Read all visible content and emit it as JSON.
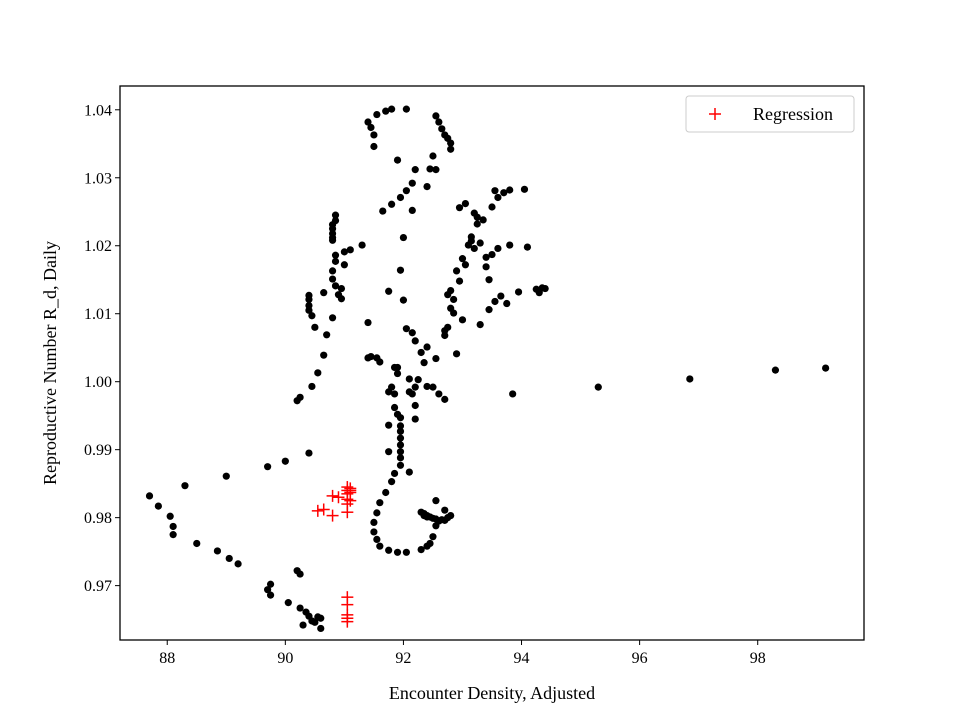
{
  "chart_data": {
    "type": "scatter",
    "title": "",
    "xlabel": "Encounter Density, Adjusted",
    "ylabel": "Reproductive Number R_d, Daily",
    "xlim": [
      87.2,
      99.8
    ],
    "ylim": [
      0.962,
      1.0435
    ],
    "xticks": [
      88,
      90,
      92,
      94,
      96,
      98
    ],
    "yticks": [
      0.97,
      0.98,
      0.99,
      1.0,
      1.01,
      1.02,
      1.03,
      1.04
    ],
    "xtick_labels": [
      "88",
      "90",
      "92",
      "94",
      "96",
      "98"
    ],
    "ytick_labels": [
      "0.97",
      "0.98",
      "0.99",
      "1.00",
      "1.01",
      "1.02",
      "1.03",
      "1.04"
    ],
    "grid": false,
    "legend_position": "top-right",
    "legend_items": [
      {
        "label": "Regression",
        "marker": "+",
        "color": "#ff0000"
      }
    ],
    "colors": {
      "data": "#000000",
      "regression": "#ff0000"
    },
    "series": [
      {
        "marker": "circle",
        "color": "#000000",
        "points": [
          [
            87.7,
            0.9832
          ],
          [
            87.85,
            0.9817
          ],
          [
            88.05,
            0.9802
          ],
          [
            88.1,
            0.9787
          ],
          [
            88.1,
            0.9775
          ],
          [
            88.3,
            0.9847
          ],
          [
            88.5,
            0.9762
          ],
          [
            88.85,
            0.9751
          ],
          [
            89.0,
            0.9861
          ],
          [
            89.05,
            0.974
          ],
          [
            89.2,
            0.9732
          ],
          [
            89.7,
            0.9875
          ],
          [
            89.7,
            0.9694
          ],
          [
            89.75,
            0.9702
          ],
          [
            89.75,
            0.9686
          ],
          [
            90.0,
            0.9883
          ],
          [
            90.05,
            0.9675
          ],
          [
            90.2,
            0.9722
          ],
          [
            90.2,
            0.9972
          ],
          [
            90.25,
            0.9977
          ],
          [
            90.25,
            0.9717
          ],
          [
            90.25,
            0.9667
          ],
          [
            90.3,
            0.9642
          ],
          [
            90.35,
            0.9661
          ],
          [
            90.4,
            0.9895
          ],
          [
            90.4,
            0.9655
          ],
          [
            90.45,
            0.9648
          ],
          [
            90.45,
            0.9993
          ],
          [
            90.5,
            0.9646
          ],
          [
            90.55,
            0.9654
          ],
          [
            90.55,
            1.0013
          ],
          [
            90.6,
            0.9637
          ],
          [
            90.6,
            0.9652
          ],
          [
            90.65,
            1.0039
          ],
          [
            90.4,
            1.0127
          ],
          [
            90.4,
            1.0121
          ],
          [
            90.4,
            1.0112
          ],
          [
            90.4,
            1.0105
          ],
          [
            90.45,
            1.0097
          ],
          [
            90.5,
            1.008
          ],
          [
            90.65,
            1.0131
          ],
          [
            90.7,
            1.0069
          ],
          [
            90.8,
            1.0094
          ],
          [
            90.8,
            1.0151
          ],
          [
            90.8,
            1.0163
          ],
          [
            90.85,
            1.0141
          ],
          [
            90.8,
            1.0218
          ],
          [
            90.8,
            1.0225
          ],
          [
            90.8,
            1.0231
          ],
          [
            90.8,
            1.0212
          ],
          [
            90.8,
            1.0208
          ],
          [
            90.85,
            1.0245
          ],
          [
            90.85,
            1.0237
          ],
          [
            90.85,
            1.0186
          ],
          [
            90.85,
            1.0177
          ],
          [
            90.9,
            1.0128
          ],
          [
            90.95,
            1.0122
          ],
          [
            90.95,
            1.0137
          ],
          [
            91.0,
            1.0172
          ],
          [
            91.0,
            1.0191
          ],
          [
            91.1,
            1.0194
          ],
          [
            91.3,
            1.0201
          ],
          [
            91.4,
            1.0087
          ],
          [
            91.4,
            1.0035
          ],
          [
            91.45,
            1.0037
          ],
          [
            91.55,
            1.0035
          ],
          [
            91.6,
            1.0029
          ],
          [
            91.65,
            1.0251
          ],
          [
            91.75,
            1.0133
          ],
          [
            91.8,
            1.0261
          ],
          [
            91.8,
            0.9992
          ],
          [
            91.85,
            1.0021
          ],
          [
            91.85,
            0.9982
          ],
          [
            91.9,
            1.0021
          ],
          [
            91.9,
            1.0012
          ],
          [
            91.95,
            1.0271
          ],
          [
            91.95,
            1.0164
          ],
          [
            92.0,
            1.0212
          ],
          [
            92.0,
            1.012
          ],
          [
            92.05,
            1.0281
          ],
          [
            92.05,
            1.0078
          ],
          [
            92.1,
            1.0004
          ],
          [
            92.15,
            0.9982
          ],
          [
            92.2,
            1.006
          ],
          [
            92.15,
            1.0072
          ],
          [
            92.15,
            1.0292
          ],
          [
            92.15,
            1.0252
          ],
          [
            92.2,
            1.0312
          ],
          [
            92.25,
            1.0003
          ],
          [
            92.3,
            1.0043
          ],
          [
            92.35,
            1.0028
          ],
          [
            92.4,
            1.0051
          ],
          [
            92.4,
            0.9993
          ],
          [
            92.4,
            1.0287
          ],
          [
            92.5,
            0.9992
          ],
          [
            92.55,
            1.0034
          ],
          [
            92.55,
            1.0312
          ],
          [
            92.6,
            0.9982
          ],
          [
            92.7,
            0.9974
          ],
          [
            92.7,
            1.0068
          ],
          [
            92.7,
            1.0075
          ],
          [
            92.75,
            1.008
          ],
          [
            92.75,
            1.0128
          ],
          [
            92.8,
            1.0134
          ],
          [
            92.8,
            1.0108
          ],
          [
            92.85,
            1.0101
          ],
          [
            92.85,
            1.0121
          ],
          [
            92.9,
            1.0041
          ],
          [
            92.9,
            1.0163
          ],
          [
            92.95,
            1.0148
          ],
          [
            92.95,
            1.0256
          ],
          [
            93.0,
            1.0091
          ],
          [
            93.0,
            1.0181
          ],
          [
            93.05,
            1.0172
          ],
          [
            93.05,
            1.0262
          ],
          [
            93.1,
            1.0201
          ],
          [
            93.15,
            1.0213
          ],
          [
            93.15,
            1.0207
          ],
          [
            93.2,
            1.0196
          ],
          [
            93.2,
            1.0248
          ],
          [
            93.25,
            1.0232
          ],
          [
            93.25,
            1.0242
          ],
          [
            93.3,
            1.0204
          ],
          [
            93.3,
            1.0084
          ],
          [
            93.35,
            1.0238
          ],
          [
            93.4,
            1.0183
          ],
          [
            93.4,
            1.0169
          ],
          [
            93.45,
            1.015
          ],
          [
            93.45,
            1.0106
          ],
          [
            93.5,
            1.0187
          ],
          [
            93.5,
            1.0257
          ],
          [
            93.55,
            1.0118
          ],
          [
            93.55,
            1.0281
          ],
          [
            93.6,
            1.0196
          ],
          [
            93.6,
            1.0271
          ],
          [
            93.65,
            1.0126
          ],
          [
            93.7,
            1.0278
          ],
          [
            93.75,
            1.0115
          ],
          [
            93.8,
            1.0201
          ],
          [
            93.8,
            1.0282
          ],
          [
            93.95,
            1.0132
          ],
          [
            94.05,
            1.0283
          ],
          [
            94.1,
            1.0198
          ],
          [
            94.25,
            1.0136
          ],
          [
            94.3,
            1.0131
          ],
          [
            94.35,
            1.0138
          ],
          [
            94.4,
            1.0137
          ],
          [
            91.4,
            1.0382
          ],
          [
            91.45,
            1.0374
          ],
          [
            91.5,
            1.0346
          ],
          [
            91.5,
            1.0363
          ],
          [
            91.55,
            1.0393
          ],
          [
            91.7,
            1.0398
          ],
          [
            91.8,
            1.0401
          ],
          [
            92.05,
            1.0401
          ],
          [
            92.55,
            1.0391
          ],
          [
            92.6,
            1.0382
          ],
          [
            92.65,
            1.0372
          ],
          [
            92.7,
            1.0363
          ],
          [
            92.75,
            1.0358
          ],
          [
            92.8,
            1.0351
          ],
          [
            92.8,
            1.0342
          ],
          [
            92.5,
            1.0332
          ],
          [
            91.9,
            1.0326
          ],
          [
            92.45,
            1.0313
          ],
          [
            91.75,
            0.9985
          ],
          [
            91.85,
            0.9962
          ],
          [
            91.9,
            0.9952
          ],
          [
            91.95,
            0.9947
          ],
          [
            91.95,
            0.9935
          ],
          [
            91.95,
            0.9927
          ],
          [
            91.95,
            0.9917
          ],
          [
            91.95,
            0.9907
          ],
          [
            91.95,
            0.9897
          ],
          [
            91.95,
            0.9888
          ],
          [
            91.95,
            0.9877
          ],
          [
            91.85,
            0.9865
          ],
          [
            91.8,
            0.9853
          ],
          [
            91.7,
            0.9837
          ],
          [
            91.6,
            0.9822
          ],
          [
            91.55,
            0.9807
          ],
          [
            91.5,
            0.9793
          ],
          [
            91.5,
            0.9779
          ],
          [
            91.55,
            0.9768
          ],
          [
            91.6,
            0.9758
          ],
          [
            91.75,
            0.9752
          ],
          [
            91.9,
            0.9749
          ],
          [
            92.05,
            0.9749
          ],
          [
            92.3,
            0.9753
          ],
          [
            92.4,
            0.9758
          ],
          [
            92.45,
            0.9762
          ],
          [
            92.5,
            0.9772
          ],
          [
            92.55,
            0.9788
          ],
          [
            92.6,
            0.9795
          ],
          [
            92.65,
            0.9797
          ],
          [
            92.7,
            0.9796
          ],
          [
            92.75,
            0.98
          ],
          [
            92.8,
            0.9803
          ],
          [
            92.7,
            0.9811
          ],
          [
            92.55,
            0.9825
          ],
          [
            92.4,
            0.9803
          ],
          [
            92.35,
            0.9806
          ],
          [
            92.4,
            0.9801
          ],
          [
            92.45,
            0.9801
          ],
          [
            92.5,
            0.9799
          ],
          [
            92.55,
            0.9798
          ],
          [
            92.35,
            0.9803
          ],
          [
            92.3,
            0.9808
          ],
          [
            91.75,
            0.9936
          ],
          [
            91.75,
            0.9897
          ],
          [
            92.1,
            0.9867
          ],
          [
            92.2,
            0.9945
          ],
          [
            92.2,
            0.9965
          ],
          [
            92.1,
            0.9985
          ],
          [
            92.2,
            0.9992
          ],
          [
            93.85,
            0.9982
          ],
          [
            95.3,
            0.9992
          ],
          [
            96.85,
            1.0004
          ],
          [
            98.3,
            1.0017
          ],
          [
            99.15,
            1.002
          ]
        ]
      },
      {
        "name": "Regression",
        "marker": "+",
        "color": "#ff0000",
        "points": [
          [
            90.55,
            0.981
          ],
          [
            90.65,
            0.9812
          ],
          [
            90.8,
            0.9803
          ],
          [
            90.8,
            0.9832
          ],
          [
            90.9,
            0.983
          ],
          [
            91.05,
            0.9808
          ],
          [
            91.05,
            0.982
          ],
          [
            91.05,
            0.9827
          ],
          [
            91.05,
            0.9835
          ],
          [
            91.05,
            0.984
          ],
          [
            91.05,
            0.9845
          ],
          [
            91.1,
            0.9843
          ],
          [
            91.1,
            0.984
          ],
          [
            91.1,
            0.9837
          ],
          [
            91.1,
            0.9825
          ],
          [
            91.05,
            0.9683
          ],
          [
            91.05,
            0.9672
          ],
          [
            91.05,
            0.9657
          ],
          [
            91.05,
            0.9652
          ],
          [
            91.05,
            0.9647
          ]
        ]
      }
    ]
  }
}
